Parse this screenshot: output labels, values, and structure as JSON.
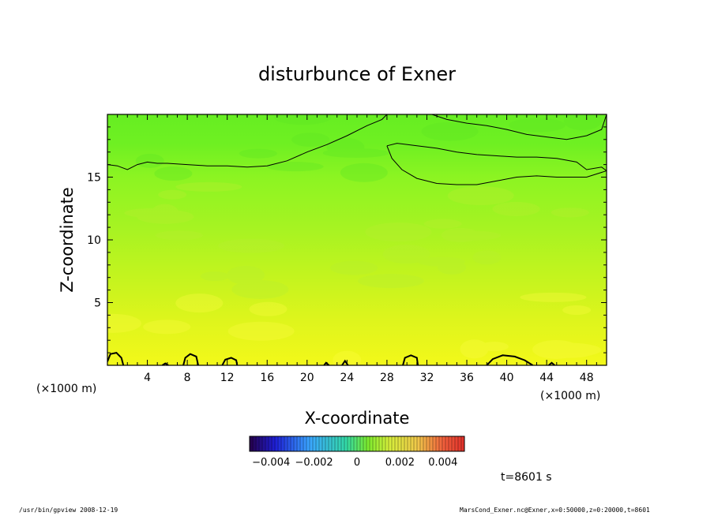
{
  "chart_data": {
    "type": "heatmap",
    "title": "disturbunce of Exner",
    "xlabel": "X-coordinate",
    "ylabel": "Z-coordinate",
    "x_unit_left": "(×1000 m)",
    "x_unit_right": "(×1000 m)",
    "xlim": [
      0,
      50
    ],
    "ylim": [
      0,
      20
    ],
    "x_ticks": [
      4,
      8,
      12,
      16,
      20,
      24,
      28,
      32,
      36,
      40,
      44,
      48
    ],
    "y_ticks": [
      5,
      10,
      15
    ],
    "colorbar": {
      "range": [
        -0.005,
        0.005
      ],
      "tick_labels": [
        "−0.004",
        "−0.002",
        "0",
        "0.002",
        "0.004"
      ],
      "tick_values": [
        -0.004,
        -0.002,
        0,
        0.002,
        0.004
      ]
    },
    "field_description": "values increase from ~0.0005 (green) near top to ~0.003 (yellow) near bottom",
    "contours": [
      {
        "name": "upper-contour",
        "points": [
          [
            0,
            16.0
          ],
          [
            1,
            15.9
          ],
          [
            2,
            15.6
          ],
          [
            3,
            16.0
          ],
          [
            4,
            16.2
          ],
          [
            5,
            16.1
          ],
          [
            6,
            16.1
          ],
          [
            8,
            16.0
          ],
          [
            10,
            15.9
          ],
          [
            12,
            15.9
          ],
          [
            14,
            15.8
          ],
          [
            16,
            15.9
          ],
          [
            18,
            16.3
          ],
          [
            20,
            17.0
          ],
          [
            22,
            17.6
          ],
          [
            24,
            18.3
          ],
          [
            26,
            19.1
          ],
          [
            27.5,
            19.6
          ],
          [
            28,
            20.0
          ]
        ]
      },
      {
        "name": "upper-right-top-contour",
        "points": [
          [
            32.5,
            20.0
          ],
          [
            34,
            19.6
          ],
          [
            36,
            19.3
          ],
          [
            38,
            19.1
          ],
          [
            40,
            18.8
          ],
          [
            42,
            18.4
          ],
          [
            44,
            18.2
          ],
          [
            46,
            18.0
          ],
          [
            48,
            18.3
          ],
          [
            49.5,
            18.8
          ],
          [
            50,
            20.0
          ]
        ]
      },
      {
        "name": "lens-contour",
        "points": [
          [
            28,
            17.5
          ],
          [
            29,
            17.7
          ],
          [
            31,
            17.5
          ],
          [
            33,
            17.3
          ],
          [
            35,
            17.0
          ],
          [
            37,
            16.8
          ],
          [
            39,
            16.7
          ],
          [
            41,
            16.6
          ],
          [
            43,
            16.6
          ],
          [
            45,
            16.5
          ],
          [
            47,
            16.2
          ],
          [
            48,
            15.6
          ],
          [
            49.5,
            15.8
          ],
          [
            50,
            15.5
          ],
          [
            48,
            15.0
          ],
          [
            46.5,
            15.0
          ],
          [
            45,
            15.0
          ],
          [
            43,
            15.1
          ],
          [
            41,
            15.0
          ],
          [
            39,
            14.7
          ],
          [
            37,
            14.4
          ],
          [
            35,
            14.4
          ],
          [
            33,
            14.5
          ],
          [
            31,
            14.9
          ],
          [
            29.5,
            15.6
          ],
          [
            28.5,
            16.5
          ],
          [
            28,
            17.5
          ]
        ]
      },
      {
        "name": "bottom-contour-1",
        "points": [
          [
            0,
            0.3
          ],
          [
            0.3,
            0.9
          ],
          [
            0.9,
            1.0
          ],
          [
            1.4,
            0.6
          ],
          [
            1.6,
            0
          ]
        ]
      },
      {
        "name": "bottom-contour-2",
        "points": [
          [
            5.5,
            0
          ],
          [
            5.8,
            0.15
          ],
          [
            6.1,
            0
          ]
        ]
      },
      {
        "name": "bottom-contour-3",
        "points": [
          [
            7.6,
            0
          ],
          [
            7.8,
            0.6
          ],
          [
            8.3,
            0.9
          ],
          [
            8.9,
            0.7
          ],
          [
            9.1,
            0
          ]
        ]
      },
      {
        "name": "bottom-contour-4",
        "points": [
          [
            11.5,
            0
          ],
          [
            11.8,
            0.45
          ],
          [
            12.4,
            0.6
          ],
          [
            12.9,
            0.4
          ],
          [
            13.0,
            0
          ]
        ]
      },
      {
        "name": "bottom-contour-5",
        "points": [
          [
            21.7,
            0
          ],
          [
            21.9,
            0.2
          ],
          [
            22.2,
            0
          ]
        ]
      },
      {
        "name": "bottom-contour-6",
        "points": [
          [
            23.5,
            0
          ],
          [
            23.8,
            0.35
          ],
          [
            24.1,
            0
          ]
        ]
      },
      {
        "name": "bottom-contour-7",
        "points": [
          [
            29.6,
            0
          ],
          [
            29.8,
            0.6
          ],
          [
            30.4,
            0.8
          ],
          [
            31.0,
            0.6
          ],
          [
            31.1,
            0
          ]
        ]
      },
      {
        "name": "bottom-contour-8",
        "points": [
          [
            38.0,
            0
          ],
          [
            38.6,
            0.5
          ],
          [
            39.6,
            0.8
          ],
          [
            40.8,
            0.7
          ],
          [
            41.8,
            0.4
          ],
          [
            42.6,
            0
          ]
        ]
      },
      {
        "name": "bottom-contour-9",
        "points": [
          [
            44.2,
            0
          ],
          [
            44.5,
            0.2
          ],
          [
            44.8,
            0
          ]
        ]
      }
    ],
    "time_label": "t=8601 s"
  },
  "footer": {
    "left": "/usr/bin/gpview   2008-12-19",
    "right": "MarsCond_Exner.nc@Exner,x=0:50000,z=0:20000,t=8601"
  }
}
